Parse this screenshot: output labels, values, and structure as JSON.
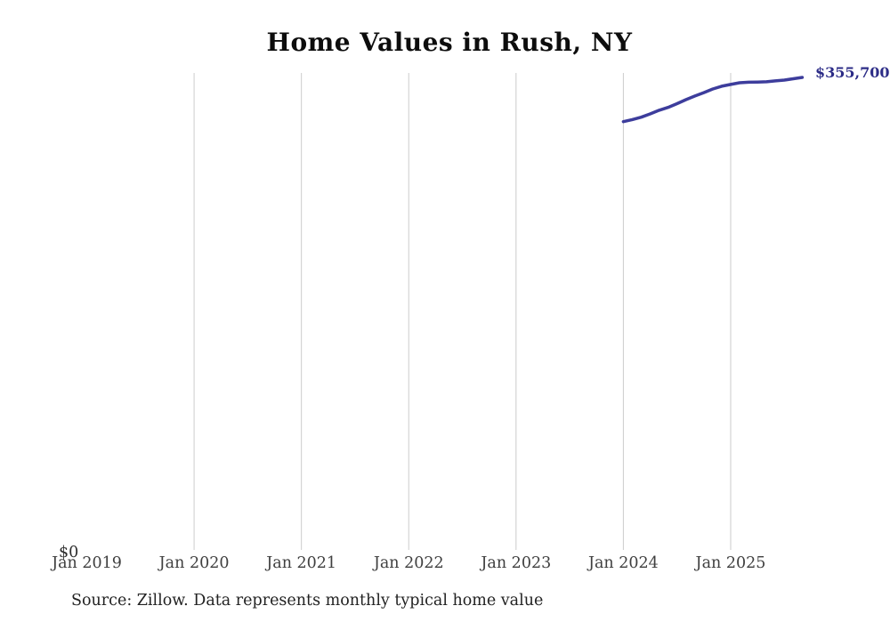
{
  "chart_data": {
    "type": "line",
    "title": "Home Values in Rush, NY",
    "series_name": "Monthly typical home value",
    "x": [
      "Jan 2024",
      "Feb 2024",
      "Mar 2024",
      "Apr 2024",
      "May 2024",
      "Jun 2024",
      "Jul 2024",
      "Aug 2024",
      "Sep 2024",
      "Oct 2024",
      "Nov 2024",
      "Dec 2024",
      "Jan 2025",
      "Feb 2025",
      "Mar 2025",
      "Apr 2025",
      "May 2025",
      "Jun 2025",
      "Jul 2025",
      "Aug 2025",
      "Sep 2025"
    ],
    "values": [
      322500,
      324000,
      325800,
      328300,
      331000,
      333200,
      336000,
      339000,
      341700,
      344300,
      347000,
      349100,
      350400,
      351700,
      352100,
      352200,
      352400,
      353100,
      353700,
      354700,
      355700
    ],
    "latest_value_label": "$355,700",
    "y_zero_label": "$0",
    "x_tick_labels": [
      "Jan 2019",
      "Jan 2020",
      "Jan 2021",
      "Jan 2022",
      "Jan 2023",
      "Jan 2024",
      "Jan 2025"
    ],
    "gridline_ticks": [
      "Jan 2020",
      "Jan 2021",
      "Jan 2022",
      "Jan 2023",
      "Jan 2024",
      "Jan 2025"
    ],
    "ylim": [
      0,
      359000
    ],
    "grid": "vertical-only",
    "legend": "none",
    "source_note": "Source: Zillow. Data represents monthly typical home value",
    "colors": {
      "line": "#3d3d9c",
      "latest_value_label": "#2c2c87",
      "gridline": "#cccccc",
      "title": "#0d0d0d",
      "tick_label": "#3f3f3f",
      "source": "#222222"
    }
  }
}
